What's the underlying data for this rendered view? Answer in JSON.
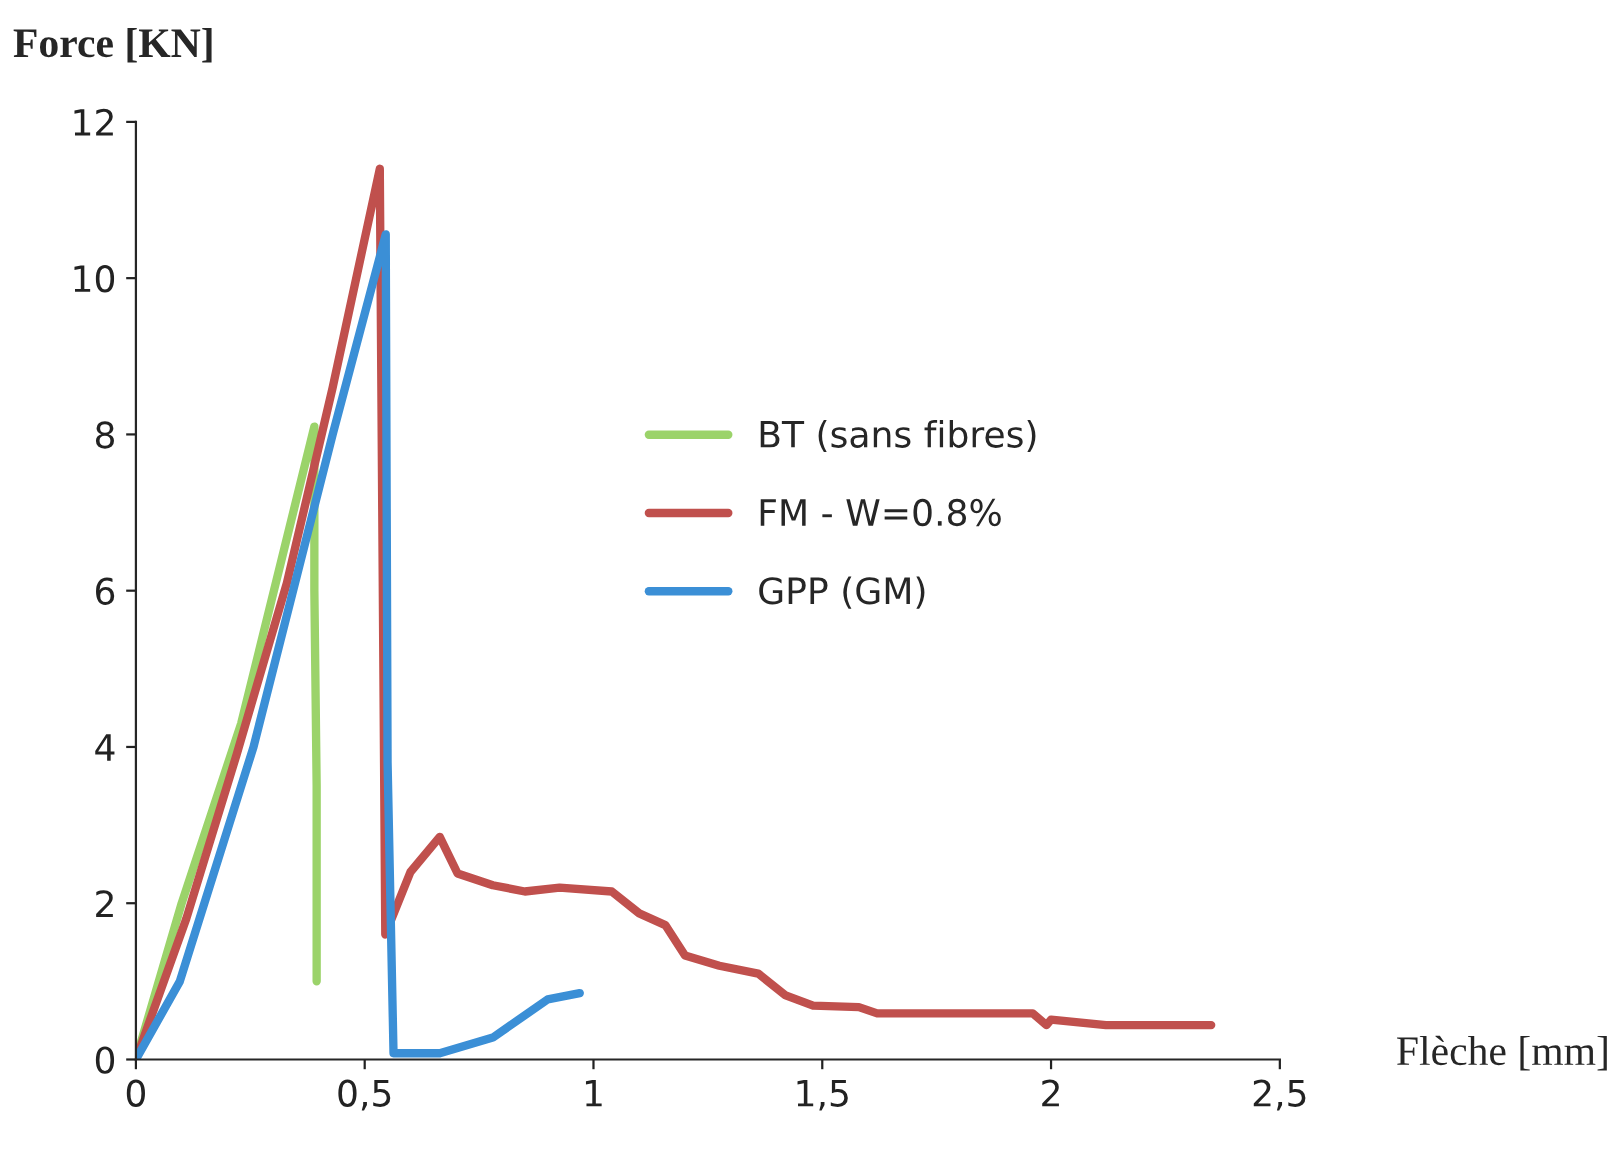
{
  "chart_data": {
    "type": "line",
    "ylabel": "Force [KN]",
    "xlabel": "Flèche [mm]",
    "xlim": [
      0,
      2.5
    ],
    "xticks": [
      0,
      {
        "value": 0.5,
        "label": "0,5"
      },
      1,
      {
        "value": 1.5,
        "label": "1,5"
      },
      2,
      {
        "value": 2.5,
        "label": "2,5"
      }
    ],
    "ylim": [
      0,
      12
    ],
    "yticks": [
      0,
      2,
      4,
      6,
      8,
      10,
      12
    ],
    "grid": false,
    "legend": "center",
    "marker": "none",
    "line_style": "solid",
    "series": [
      {
        "name": "BT (sans fibres)",
        "color": "#9bd36a",
        "x": [
          0,
          0.1,
          0.23,
          0.39,
          0.39,
          0.395,
          0.395
        ],
        "values": [
          0,
          2.0,
          4.3,
          8.1,
          6.0,
          3.5,
          1.0
        ]
      },
      {
        "name": "FM - W=0.8%",
        "color": "#c0504d",
        "x": [
          0,
          0.11,
          0.22,
          0.33,
          0.43,
          0.533,
          0.545,
          0.6,
          0.664,
          0.703,
          0.78,
          0.85,
          0.926,
          1.04,
          1.1,
          1.157,
          1.2,
          1.275,
          1.36,
          1.42,
          1.48,
          1.58,
          1.62,
          1.96,
          1.99,
          2.0,
          2.12,
          2.35
        ],
        "values": [
          0,
          1.8,
          3.9,
          6.1,
          8.6,
          11.4,
          1.6,
          2.4,
          2.85,
          2.38,
          2.23,
          2.15,
          2.2,
          2.15,
          1.87,
          1.72,
          1.33,
          1.2,
          1.1,
          0.82,
          0.69,
          0.67,
          0.59,
          0.59,
          0.44,
          0.51,
          0.44,
          0.44
        ]
      },
      {
        "name": "GPP (GM)",
        "color": "#3b8fd6",
        "x": [
          0,
          0.096,
          0.257,
          0.43,
          0.546,
          0.55,
          0.563,
          0.664,
          0.78,
          0.9,
          0.97
        ],
        "values": [
          0,
          1.0,
          4.0,
          8.0,
          10.56,
          3.8,
          0.08,
          0.08,
          0.28,
          0.77,
          0.85
        ]
      }
    ]
  }
}
